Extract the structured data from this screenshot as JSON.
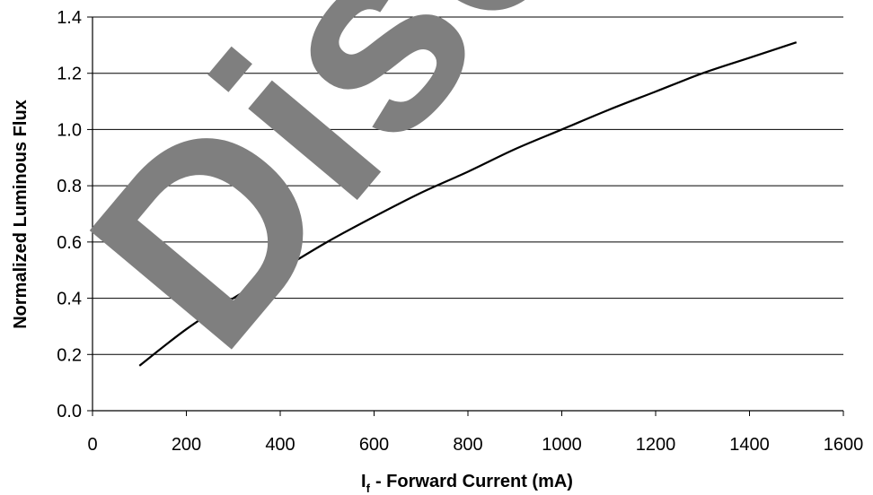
{
  "watermark": {
    "text": "Discontinued",
    "color": "#808080"
  },
  "chart_data": {
    "type": "line",
    "title": "",
    "xlabel": "- Forward Current (mA)",
    "xlabel_symbol": "I",
    "xlabel_subscript": "f",
    "ylabel": "Normalized Luminous Flux",
    "xlim": [
      0,
      1600
    ],
    "ylim": [
      0.0,
      1.4
    ],
    "x_ticks": [
      0,
      200,
      400,
      600,
      800,
      1000,
      1200,
      1400,
      1600
    ],
    "x_tick_labels": [
      "0",
      "200",
      "400",
      "600",
      "800",
      "1000",
      "1200",
      "1400",
      "1600"
    ],
    "y_ticks": [
      0.0,
      0.2,
      0.4,
      0.6,
      0.8,
      1.0,
      1.2,
      1.4
    ],
    "y_tick_labels": [
      "0.0",
      "0.2",
      "0.4",
      "0.6",
      "0.8",
      "1.0",
      "1.2",
      "1.4"
    ],
    "grid": "horizontal",
    "legend": "none",
    "series": [
      {
        "color": "#000000",
        "x": [
          100,
          200,
          300,
          400,
          500,
          600,
          700,
          800,
          900,
          1000,
          1100,
          1200,
          1300,
          1400,
          1500
        ],
        "y": [
          0.16,
          0.29,
          0.4,
          0.5,
          0.6,
          0.69,
          0.775,
          0.85,
          0.93,
          1.0,
          1.07,
          1.135,
          1.2,
          1.255,
          1.31
        ]
      }
    ]
  }
}
